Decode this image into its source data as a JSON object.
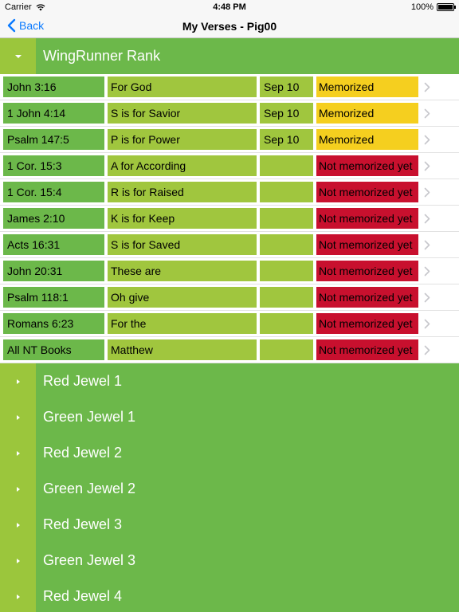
{
  "status_bar": {
    "carrier": "Carrier",
    "time": "4:48 PM",
    "battery": "100%",
    "battery_level": 1.0
  },
  "nav": {
    "back_label": "Back",
    "title": "My Verses - Pig00"
  },
  "expanded_section": {
    "title": "WingRunner Rank"
  },
  "status_colors": {
    "memorized": "#f5cf1f",
    "not_memorized": "#c8102e"
  },
  "verses": [
    {
      "ref": "John 3:16",
      "title": "For God",
      "date": "Sep 10",
      "status": "Memorized",
      "status_type": "memorized"
    },
    {
      "ref": "1 John 4:14",
      "title": "S is for Savior",
      "date": "Sep 10",
      "status": "Memorized",
      "status_type": "memorized"
    },
    {
      "ref": "Psalm 147:5",
      "title": "P is for Power",
      "date": "Sep 10",
      "status": "Memorized",
      "status_type": "memorized"
    },
    {
      "ref": "1 Cor. 15:3",
      "title": "A for According",
      "date": "",
      "status": "Not memorized yet",
      "status_type": "not_memorized"
    },
    {
      "ref": "1 Cor. 15:4",
      "title": "R is for Raised",
      "date": "",
      "status": "Not memorized yet",
      "status_type": "not_memorized"
    },
    {
      "ref": "James 2:10",
      "title": "K is for Keep",
      "date": "",
      "status": "Not memorized yet",
      "status_type": "not_memorized"
    },
    {
      "ref": "Acts 16:31",
      "title": "S is for Saved",
      "date": "",
      "status": "Not memorized yet",
      "status_type": "not_memorized"
    },
    {
      "ref": "John 20:31",
      "title": "These are",
      "date": "",
      "status": "Not memorized yet",
      "status_type": "not_memorized"
    },
    {
      "ref": "Psalm 118:1",
      "title": "Oh give",
      "date": "",
      "status": "Not memorized yet",
      "status_type": "not_memorized"
    },
    {
      "ref": "Romans 6:23",
      "title": "For the",
      "date": "",
      "status": "Not memorized yet",
      "status_type": "not_memorized"
    },
    {
      "ref": "All NT Books",
      "title": "Matthew",
      "date": "",
      "status": "Not memorized yet",
      "status_type": "not_memorized"
    }
  ],
  "collapsed_sections": [
    {
      "title": "Red Jewel 1"
    },
    {
      "title": "Green Jewel 1"
    },
    {
      "title": "Red Jewel 2"
    },
    {
      "title": "Green Jewel 2"
    },
    {
      "title": "Red Jewel 3"
    },
    {
      "title": "Green Jewel 3"
    },
    {
      "title": "Red Jewel 4"
    }
  ]
}
